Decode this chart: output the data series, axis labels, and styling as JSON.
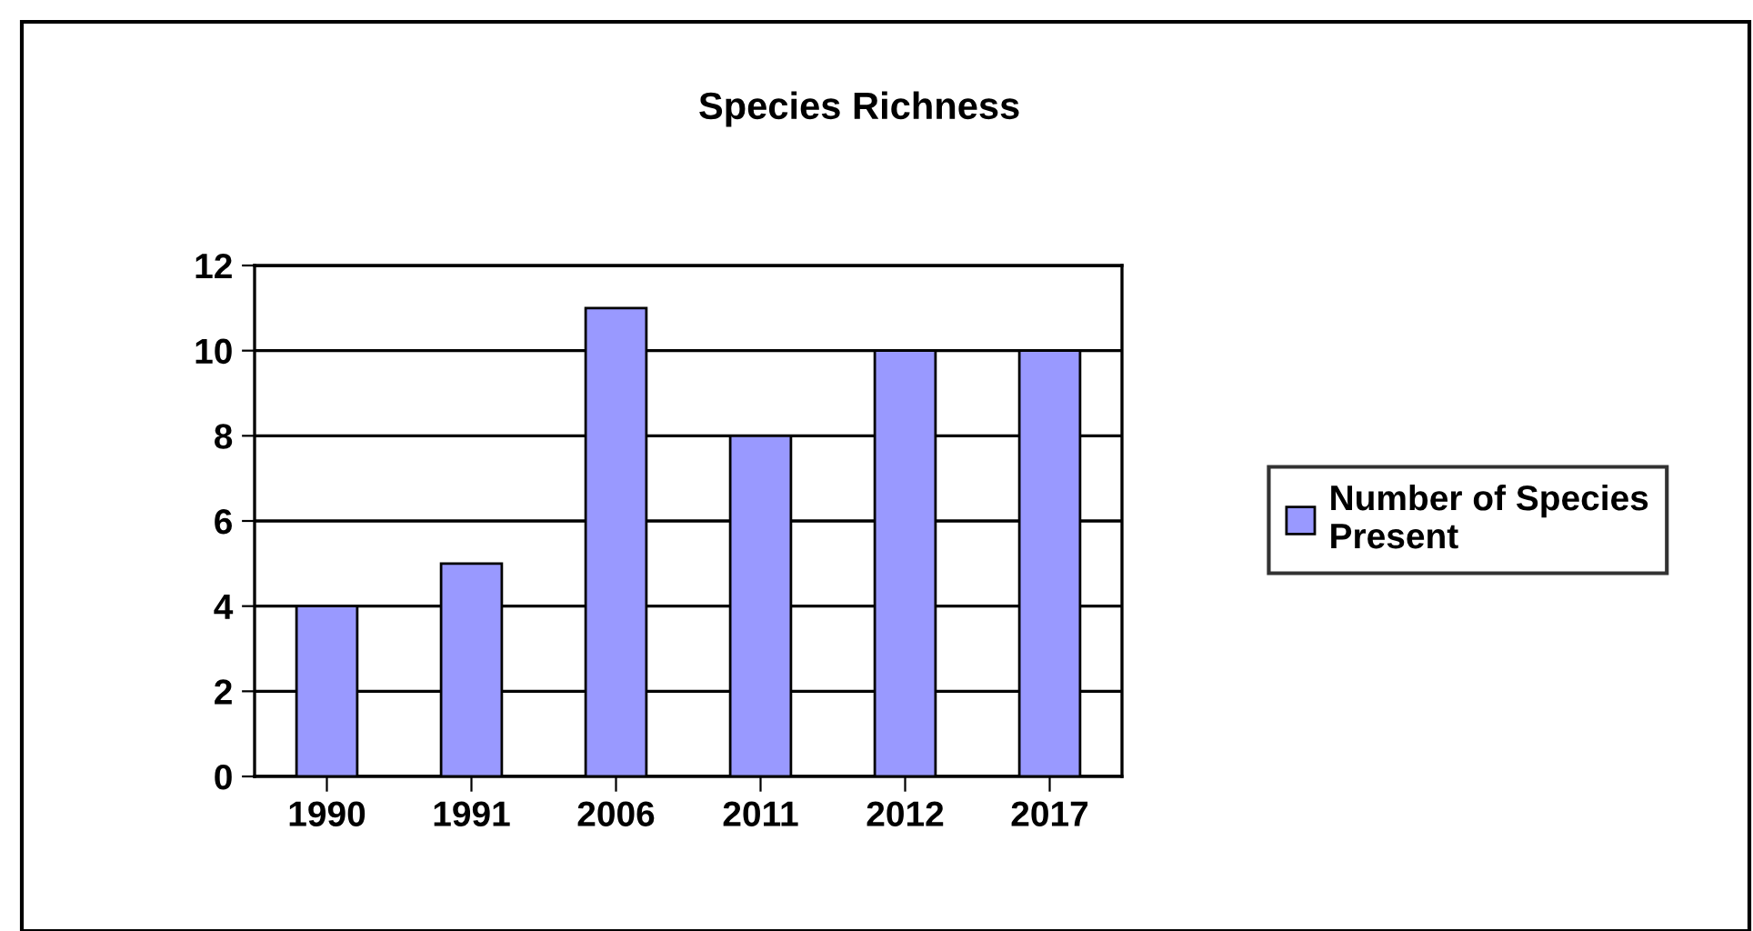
{
  "chart_data": {
    "type": "bar",
    "title": "Species Richness",
    "categories": [
      "1990",
      "1991",
      "2006",
      "2011",
      "2012",
      "2017"
    ],
    "series": [
      {
        "name": "Number of Species\nPresent",
        "color": "#9999ff",
        "values": [
          4,
          5,
          11,
          8,
          10,
          10
        ]
      }
    ],
    "ylim": [
      0,
      12
    ],
    "yticks": [
      0,
      2,
      4,
      6,
      8,
      10,
      12
    ],
    "grid": "y",
    "legend": "right"
  }
}
